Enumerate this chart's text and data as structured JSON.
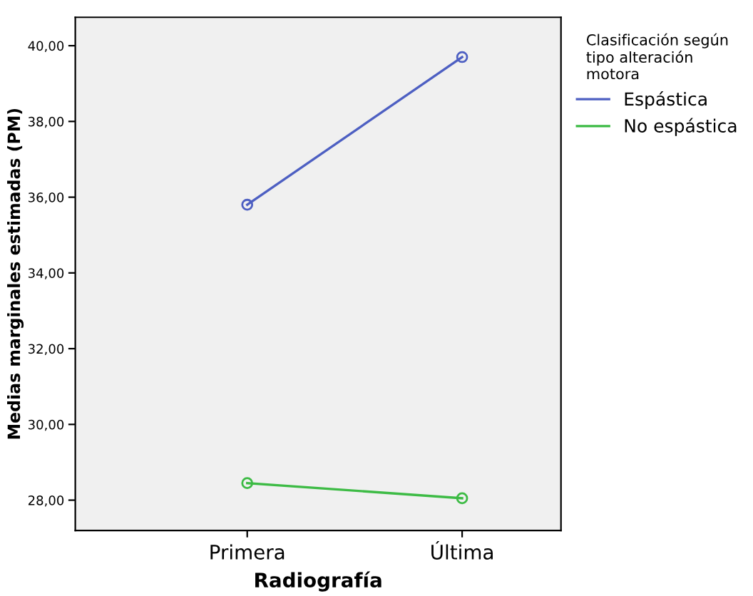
{
  "chart_data": {
    "type": "line",
    "xlabel": "Radiografía",
    "ylabel": "Medias marginales estimadas (PM)",
    "legend_title": "Clasificación según\ntipo alteración\nmotora",
    "categories": [
      "Primera",
      "Última"
    ],
    "series": [
      {
        "name": "Espástica",
        "color": "#4d5fc2",
        "values": [
          35.8,
          39.7
        ]
      },
      {
        "name": "No espástica",
        "color": "#3dbb45",
        "values": [
          28.45,
          28.05
        ]
      }
    ],
    "ylim": [
      27.2,
      40.75
    ],
    "yticks": [
      {
        "value": 28,
        "label": "28,00"
      },
      {
        "value": 30,
        "label": "30,00"
      },
      {
        "value": 32,
        "label": "32,00"
      },
      {
        "value": 34,
        "label": "34,00"
      },
      {
        "value": 36,
        "label": "36,00"
      },
      {
        "value": 38,
        "label": "38,00"
      },
      {
        "value": 40,
        "label": "40,00"
      }
    ],
    "marker": "circle",
    "line_style": "solid",
    "grid": false,
    "legend": "top right"
  }
}
